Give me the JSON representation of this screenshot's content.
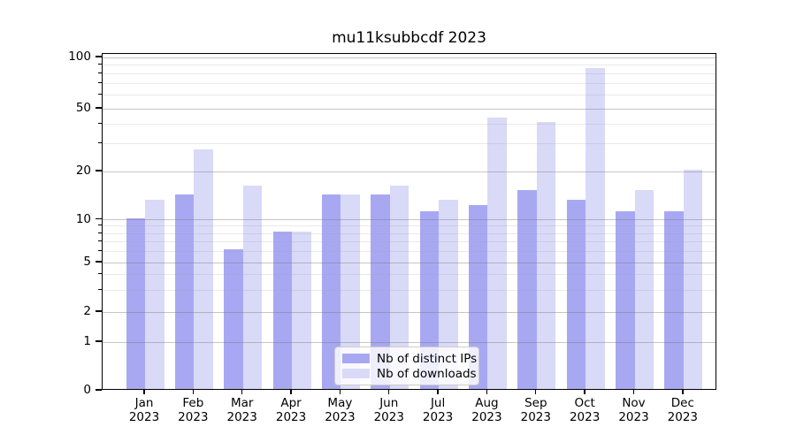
{
  "title": "mu11ksubbcdf 2023",
  "legend": {
    "items": [
      {
        "label": "Nb of distinct IPs",
        "color": "#a8a8f2"
      },
      {
        "label": "Nb of downloads",
        "color": "#d9d9f8"
      }
    ]
  },
  "chart_data": {
    "type": "bar",
    "title": "mu11ksubbcdf 2023",
    "categories": [
      "Jan",
      "Feb",
      "Mar",
      "Apr",
      "May",
      "Jun",
      "Jul",
      "Aug",
      "Sep",
      "Oct",
      "Nov",
      "Dec"
    ],
    "year_label": "2023",
    "series": [
      {
        "name": "Nb of distinct IPs",
        "color": "#a8a8f2",
        "values": [
          10,
          14,
          6,
          8,
          14,
          14,
          11,
          12,
          15,
          13,
          11,
          11
        ]
      },
      {
        "name": "Nb of downloads",
        "color": "#d9d9f8",
        "values": [
          13,
          27,
          16,
          8,
          14,
          16,
          13,
          43,
          40,
          85,
          15,
          20
        ]
      }
    ],
    "y_axis": {
      "scale": "symlog",
      "major_ticks": [
        0,
        1,
        2,
        5,
        10,
        20,
        50,
        100
      ],
      "minor_ticks": [
        3,
        4,
        6,
        7,
        8,
        9,
        30,
        40,
        60,
        70,
        80,
        90
      ],
      "tick_labels": [
        "0",
        "1",
        "2",
        "5",
        "10",
        "20",
        "50",
        "100"
      ],
      "ylim": [
        0,
        100
      ]
    },
    "xlabel": "",
    "ylabel": "",
    "grid": true,
    "grid_over_bars": true,
    "legend_position": "lower center"
  }
}
